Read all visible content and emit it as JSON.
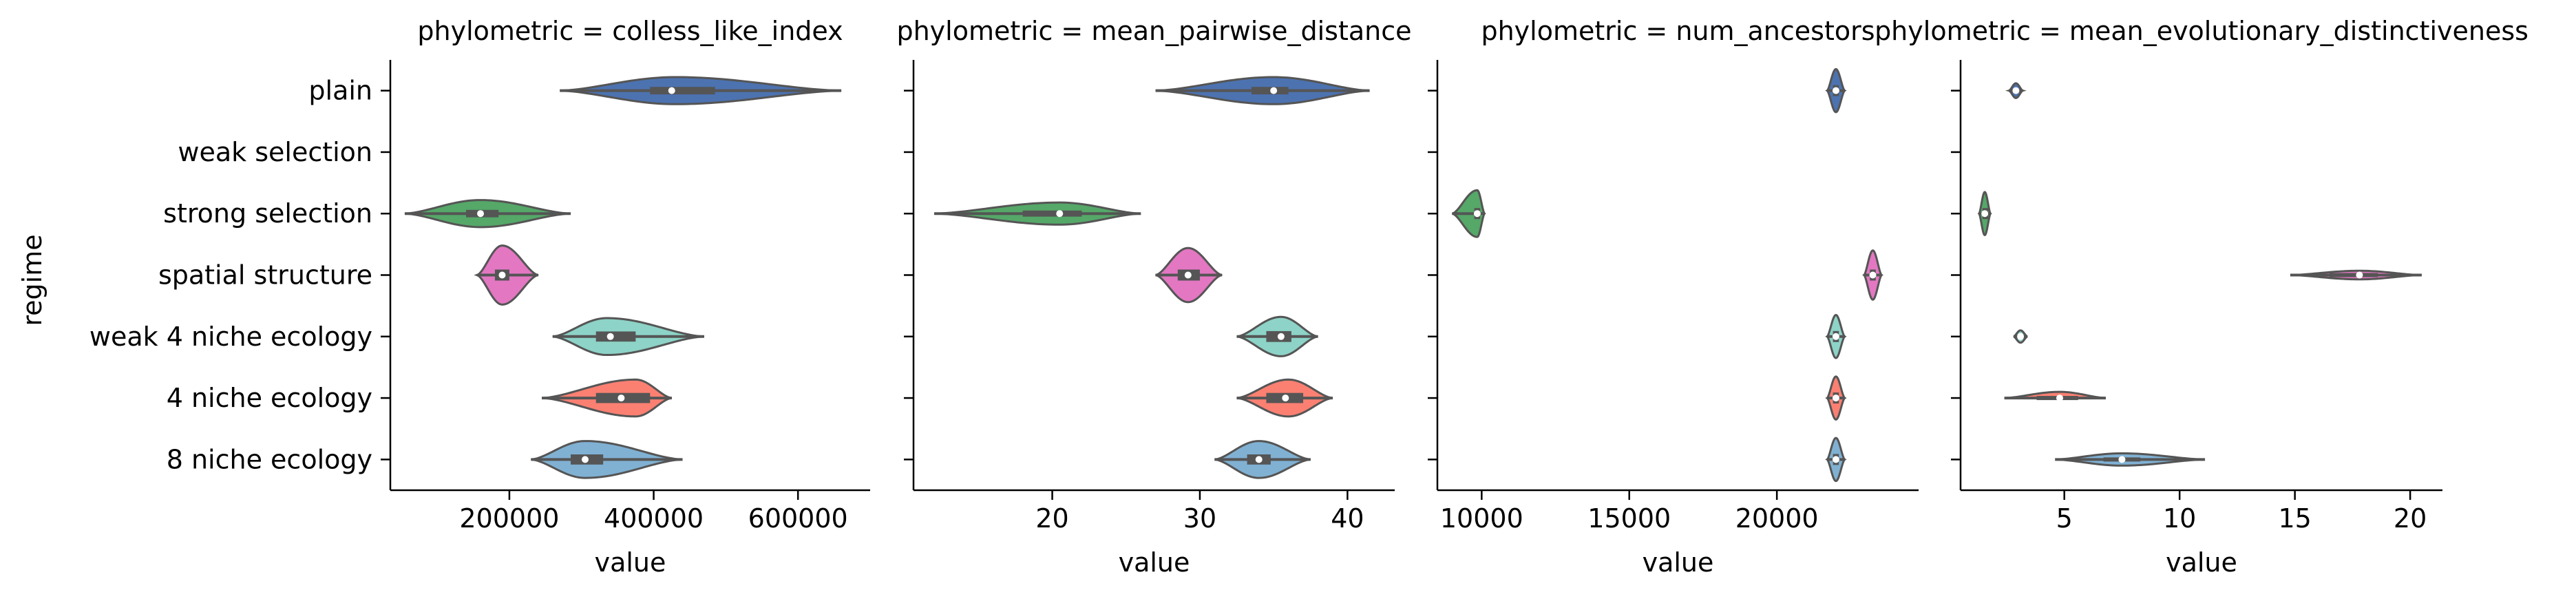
{
  "chart_data": {
    "type": "violin",
    "orientation": "horizontal",
    "shared_y": true,
    "ylabel": "regime",
    "categories": [
      "plain",
      "weak selection",
      "strong selection",
      "spatial structure",
      "weak 4 niche ecology",
      "4 niche ecology",
      "8 niche ecology"
    ],
    "category_colors": [
      "#4c72b0",
      "#dd8452",
      "#55a868",
      "#e377c2",
      "#8dd3c7",
      "#fb8072",
      "#80b1d3"
    ],
    "panels": [
      {
        "title": "phylometric = colless_like_index",
        "xlabel": "value",
        "xlim": [
          35000,
          700000
        ],
        "xticks": [
          200000,
          400000,
          600000
        ],
        "xtick_labels": [
          "200000",
          "400000",
          "600000"
        ],
        "violins": [
          {
            "category": "plain",
            "min": 270000,
            "max": 660000,
            "q1": 395000,
            "median": 425000,
            "q3": 485000,
            "mode": 430000,
            "width": 0.22
          },
          {
            "category": "weak selection",
            "min": null,
            "max": null,
            "q1": null,
            "median": null,
            "q3": null,
            "mode": null,
            "width": 0
          },
          {
            "category": "strong selection",
            "min": 55000,
            "max": 285000,
            "q1": 140000,
            "median": 160000,
            "q3": 185000,
            "mode": 160000,
            "width": 0.22
          },
          {
            "category": "spatial structure",
            "min": 155000,
            "max": 240000,
            "q1": 180000,
            "median": 190000,
            "q3": 200000,
            "mode": 190000,
            "width": 0.48
          },
          {
            "category": "weak 4 niche ecology",
            "min": 260000,
            "max": 470000,
            "q1": 320000,
            "median": 340000,
            "q3": 375000,
            "mode": 335000,
            "width": 0.3
          },
          {
            "category": "4 niche ecology",
            "min": 245000,
            "max": 425000,
            "q1": 320000,
            "median": 355000,
            "q3": 395000,
            "mode": 375000,
            "width": 0.3
          },
          {
            "category": "8 niche ecology",
            "min": 230000,
            "max": 440000,
            "q1": 285000,
            "median": 305000,
            "q3": 330000,
            "mode": 305000,
            "width": 0.3
          }
        ]
      },
      {
        "title": "phylometric = mean_pairwise_distance",
        "xlabel": "value",
        "xlim": [
          10.6,
          43.2
        ],
        "xticks": [
          20,
          30,
          40
        ],
        "xtick_labels": [
          "20",
          "30",
          "40"
        ],
        "violins": [
          {
            "category": "plain",
            "min": 27,
            "max": 41.5,
            "q1": 33.5,
            "median": 35,
            "q3": 36,
            "mode": 35,
            "width": 0.22
          },
          {
            "category": "weak selection",
            "min": null,
            "max": null,
            "q1": null,
            "median": null,
            "q3": null,
            "mode": null,
            "width": 0
          },
          {
            "category": "strong selection",
            "min": 12,
            "max": 26,
            "q1": 18,
            "median": 20.5,
            "q3": 22,
            "mode": 20.5,
            "width": 0.18
          },
          {
            "category": "spatial structure",
            "min": 27,
            "max": 31.5,
            "q1": 28.5,
            "median": 29.2,
            "q3": 30,
            "mode": 29.2,
            "width": 0.44
          },
          {
            "category": "weak 4 niche ecology",
            "min": 32.5,
            "max": 38,
            "q1": 34.5,
            "median": 35.5,
            "q3": 36.2,
            "mode": 35.5,
            "width": 0.32
          },
          {
            "category": "4 niche ecology",
            "min": 32.5,
            "max": 39,
            "q1": 34.5,
            "median": 35.8,
            "q3": 37,
            "mode": 36,
            "width": 0.3
          },
          {
            "category": "8 niche ecology",
            "min": 31,
            "max": 37.5,
            "q1": 33.2,
            "median": 34,
            "q3": 34.8,
            "mode": 34,
            "width": 0.3
          }
        ]
      },
      {
        "title": "phylometric = num_ancestors",
        "xlabel": "value",
        "xlim": [
          8500,
          24800
        ],
        "xticks": [
          10000,
          15000,
          20000
        ],
        "xtick_labels": [
          "10000",
          "15000",
          "20000"
        ],
        "violins": [
          {
            "category": "plain",
            "min": 21700,
            "max": 22300,
            "q1": 21900,
            "median": 22000,
            "q3": 22100,
            "mode": 22000,
            "width": 0.35
          },
          {
            "category": "weak selection",
            "min": null,
            "max": null,
            "q1": null,
            "median": null,
            "q3": null,
            "mode": null,
            "width": 0
          },
          {
            "category": "strong selection",
            "min": 9000,
            "max": 10100,
            "q1": 9750,
            "median": 9850,
            "q3": 9950,
            "mode": 9850,
            "width": 0.38
          },
          {
            "category": "spatial structure",
            "min": 22950,
            "max": 23550,
            "q1": 23150,
            "median": 23250,
            "q3": 23350,
            "mode": 23250,
            "width": 0.4
          },
          {
            "category": "weak 4 niche ecology",
            "min": 21700,
            "max": 22300,
            "q1": 21900,
            "median": 22000,
            "q3": 22100,
            "mode": 22000,
            "width": 0.35
          },
          {
            "category": "4 niche ecology",
            "min": 21700,
            "max": 22300,
            "q1": 21900,
            "median": 22000,
            "q3": 22100,
            "mode": 22000,
            "width": 0.35
          },
          {
            "category": "8 niche ecology",
            "min": 21700,
            "max": 22300,
            "q1": 21900,
            "median": 22000,
            "q3": 22100,
            "mode": 22000,
            "width": 0.35
          }
        ]
      },
      {
        "title": "phylometric = mean_evolutionary_distinctiveness",
        "xlabel": "value",
        "xlim": [
          0.5,
          21.4
        ],
        "xticks": [
          5,
          10,
          15,
          20
        ],
        "xtick_labels": [
          "5",
          "10",
          "15",
          "20"
        ],
        "violins": [
          {
            "category": "plain",
            "min": 2.6,
            "max": 3.2,
            "q1": 2.75,
            "median": 2.9,
            "q3": 3.05,
            "mode": 2.9,
            "width": 0.12
          },
          {
            "category": "weak selection",
            "min": null,
            "max": null,
            "q1": null,
            "median": null,
            "q3": null,
            "mode": null,
            "width": 0
          },
          {
            "category": "strong selection",
            "min": 1.3,
            "max": 1.8,
            "q1": 1.45,
            "median": 1.55,
            "q3": 1.7,
            "mode": 1.55,
            "width": 0.35
          },
          {
            "category": "spatial structure",
            "min": 14.8,
            "max": 20.5,
            "q1": 16.5,
            "median": 17.8,
            "q3": 18.6,
            "mode": 17.8,
            "width": 0.07
          },
          {
            "category": "weak 4 niche ecology",
            "min": 2.8,
            "max": 3.4,
            "q1": 2.95,
            "median": 3.1,
            "q3": 3.25,
            "mode": 3.1,
            "width": 0.1
          },
          {
            "category": "4 niche ecology",
            "min": 2.4,
            "max": 6.8,
            "q1": 3.8,
            "median": 4.8,
            "q3": 5.6,
            "mode": 4.8,
            "width": 0.1
          },
          {
            "category": "8 niche ecology",
            "min": 4.6,
            "max": 11.1,
            "q1": 6.7,
            "median": 7.5,
            "q3": 8.3,
            "mode": 7.5,
            "width": 0.1
          }
        ]
      }
    ],
    "colors": {
      "line": "#555555",
      "box": "#555555",
      "median_dot": "#ffffff",
      "axis": "#000000"
    }
  }
}
